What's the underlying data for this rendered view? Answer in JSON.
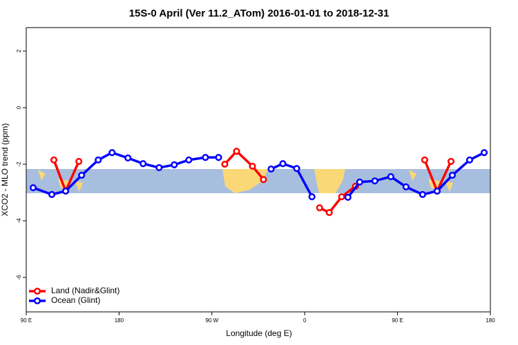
{
  "chart_data": {
    "type": "line",
    "title": "15S-0 April (Ver 11.2_ATom)   2016-01-01 to 2018-12-31",
    "x_label": "Longitude (deg E)",
    "y_label": "XCO2 - MLO trend (ppm)",
    "xlim": [
      90,
      540
    ],
    "xticks": [
      {
        "value": 90,
        "label": "90 E"
      },
      180,
      {
        "value": 270,
        "label": "90 W"
      },
      {
        "value": 360,
        "label": "0"
      },
      {
        "value": 450,
        "label": "90 E"
      },
      {
        "value": 540,
        "label": "180"
      }
    ],
    "ylim": [
      -7.22,
      2.83
    ],
    "yticks": [
      2,
      0,
      -2,
      -4,
      -6
    ],
    "legend": "bottom-left",
    "series": [
      {
        "name": "Land (Nadir&Glint)",
        "color": "#ff0000",
        "x": [
          116.8,
          128.2,
          141.0,
          null,
          282.5,
          293.9,
          309.3,
          320.0,
          null,
          374.4,
          383.8,
          395.8,
          409.2,
          null,
          476.3,
          488.4,
          501.8
        ],
        "values": [
          -1.85,
          -2.95,
          -1.9,
          null,
          -2.0,
          -1.54,
          -2.07,
          -2.54,
          null,
          -3.54,
          -3.71,
          -3.15,
          -2.78,
          null,
          -1.85,
          -2.95,
          -1.9
        ]
      },
      {
        "name": "Ocean (Glint)",
        "color": "#0000ff",
        "x": [
          96.7,
          114.8,
          128.2,
          143.7,
          159.8,
          173.2,
          188.6,
          203.3,
          218.8,
          233.5,
          247.6,
          263.7,
          276.5,
          null,
          327.4,
          338.8,
          352.2,
          367.0,
          null,
          401.9,
          413.3,
          428.0,
          443.5,
          458.2,
          474.3,
          488.4,
          503.1,
          519.9,
          534.0
        ],
        "values": [
          -2.83,
          -3.07,
          -2.95,
          -2.39,
          -1.85,
          -1.59,
          -1.78,
          -1.98,
          -2.12,
          -2.02,
          -1.85,
          -1.76,
          -1.76,
          null,
          -2.17,
          -1.98,
          -2.15,
          -3.15,
          null,
          -3.17,
          -2.63,
          -2.59,
          -2.44,
          -2.8,
          -3.07,
          -2.95,
          -2.39,
          -1.85,
          -1.59
        ]
      }
    ]
  }
}
